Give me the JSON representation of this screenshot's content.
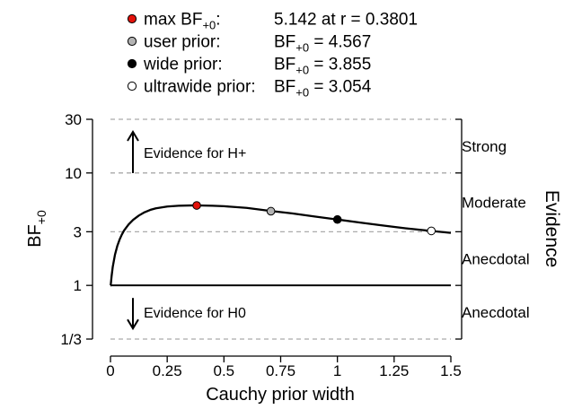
{
  "chart_data": {
    "type": "line",
    "xlabel": "Cauchy prior width",
    "ylabel_main": "BF",
    "ylabel_sub": "+0",
    "right_axis_label": "Evidence",
    "xlim": [
      0,
      1.5
    ],
    "ylim_log": [
      0.3333,
      30
    ],
    "x_ticks": [
      {
        "value": 0,
        "label": "0"
      },
      {
        "value": 0.25,
        "label": "0.25"
      },
      {
        "value": 0.5,
        "label": "0.5"
      },
      {
        "value": 0.75,
        "label": "0.75"
      },
      {
        "value": 1,
        "label": "1"
      },
      {
        "value": 1.25,
        "label": "1.25"
      },
      {
        "value": 1.5,
        "label": "1.5"
      }
    ],
    "y_ticks": [
      {
        "value": 30,
        "label": "30"
      },
      {
        "value": 10,
        "label": "10"
      },
      {
        "value": 3,
        "label": "3"
      },
      {
        "value": 1,
        "label": "1"
      },
      {
        "value": 0.3333,
        "label": "1/3"
      }
    ],
    "dashed_levels": [
      30,
      10,
      3,
      0.3333
    ],
    "solid_level": 1,
    "evidence_labels": [
      {
        "label": "Strong",
        "at": 17.3
      },
      {
        "label": "Moderate",
        "at": 5.48
      },
      {
        "label": "Anecdotal",
        "at": 1.73
      },
      {
        "label": "Anecdotal",
        "at": 0.577
      }
    ],
    "annotations": {
      "up": "Evidence for H+",
      "down": "Evidence for H0"
    },
    "curve": {
      "x": [
        0.001,
        0.005,
        0.01,
        0.02,
        0.03,
        0.04,
        0.05,
        0.06,
        0.08,
        0.1,
        0.125,
        0.15,
        0.175,
        0.2,
        0.25,
        0.3,
        0.35,
        0.3801,
        0.45,
        0.5,
        0.6,
        0.7,
        0.8,
        0.9,
        1.0,
        1.1,
        1.2,
        1.3,
        1.41,
        1.5
      ],
      "y": [
        1.0,
        1.21,
        1.46,
        1.88,
        2.24,
        2.55,
        2.83,
        3.08,
        3.49,
        3.83,
        4.18,
        4.47,
        4.69,
        4.85,
        5.03,
        5.11,
        5.14,
        5.142,
        5.11,
        5.06,
        4.89,
        4.61,
        4.37,
        4.1,
        3.855,
        3.62,
        3.41,
        3.22,
        3.054,
        2.93
      ]
    },
    "series": [
      {
        "name": "max BF",
        "x": 0.3801,
        "y": 5.142,
        "color": "#e3120b"
      },
      {
        "name": "user prior",
        "x": 0.707,
        "y": 4.567,
        "color": "#b3b3b3"
      },
      {
        "name": "wide prior",
        "x": 1.0,
        "y": 3.855,
        "color": "#000000"
      },
      {
        "name": "ultrawide prior",
        "x": 1.414,
        "y": 3.054,
        "color": "#ffffff"
      }
    ]
  },
  "legend": [
    {
      "label_main": "max BF",
      "label_sub": "+0",
      "label_tail": ":",
      "value_text": "5.142 at r = 0.3801",
      "value_main": "",
      "value_sub": "",
      "value_tail": "",
      "color": "#e3120b"
    },
    {
      "label_main": "user prior:",
      "label_sub": "",
      "label_tail": "",
      "value_text": "",
      "value_main": "BF",
      "value_sub": "+0",
      "value_tail": " = 4.567",
      "color": "#b3b3b3"
    },
    {
      "label_main": "wide prior:",
      "label_sub": "",
      "label_tail": "",
      "value_text": "",
      "value_main": "BF",
      "value_sub": "+0",
      "value_tail": " = 3.855",
      "color": "#000000"
    },
    {
      "label_main": "ultrawide prior:",
      "label_sub": "",
      "label_tail": "",
      "value_text": "",
      "value_main": "BF",
      "value_sub": "+0",
      "value_tail": " = 3.054",
      "color": "#ffffff"
    }
  ]
}
